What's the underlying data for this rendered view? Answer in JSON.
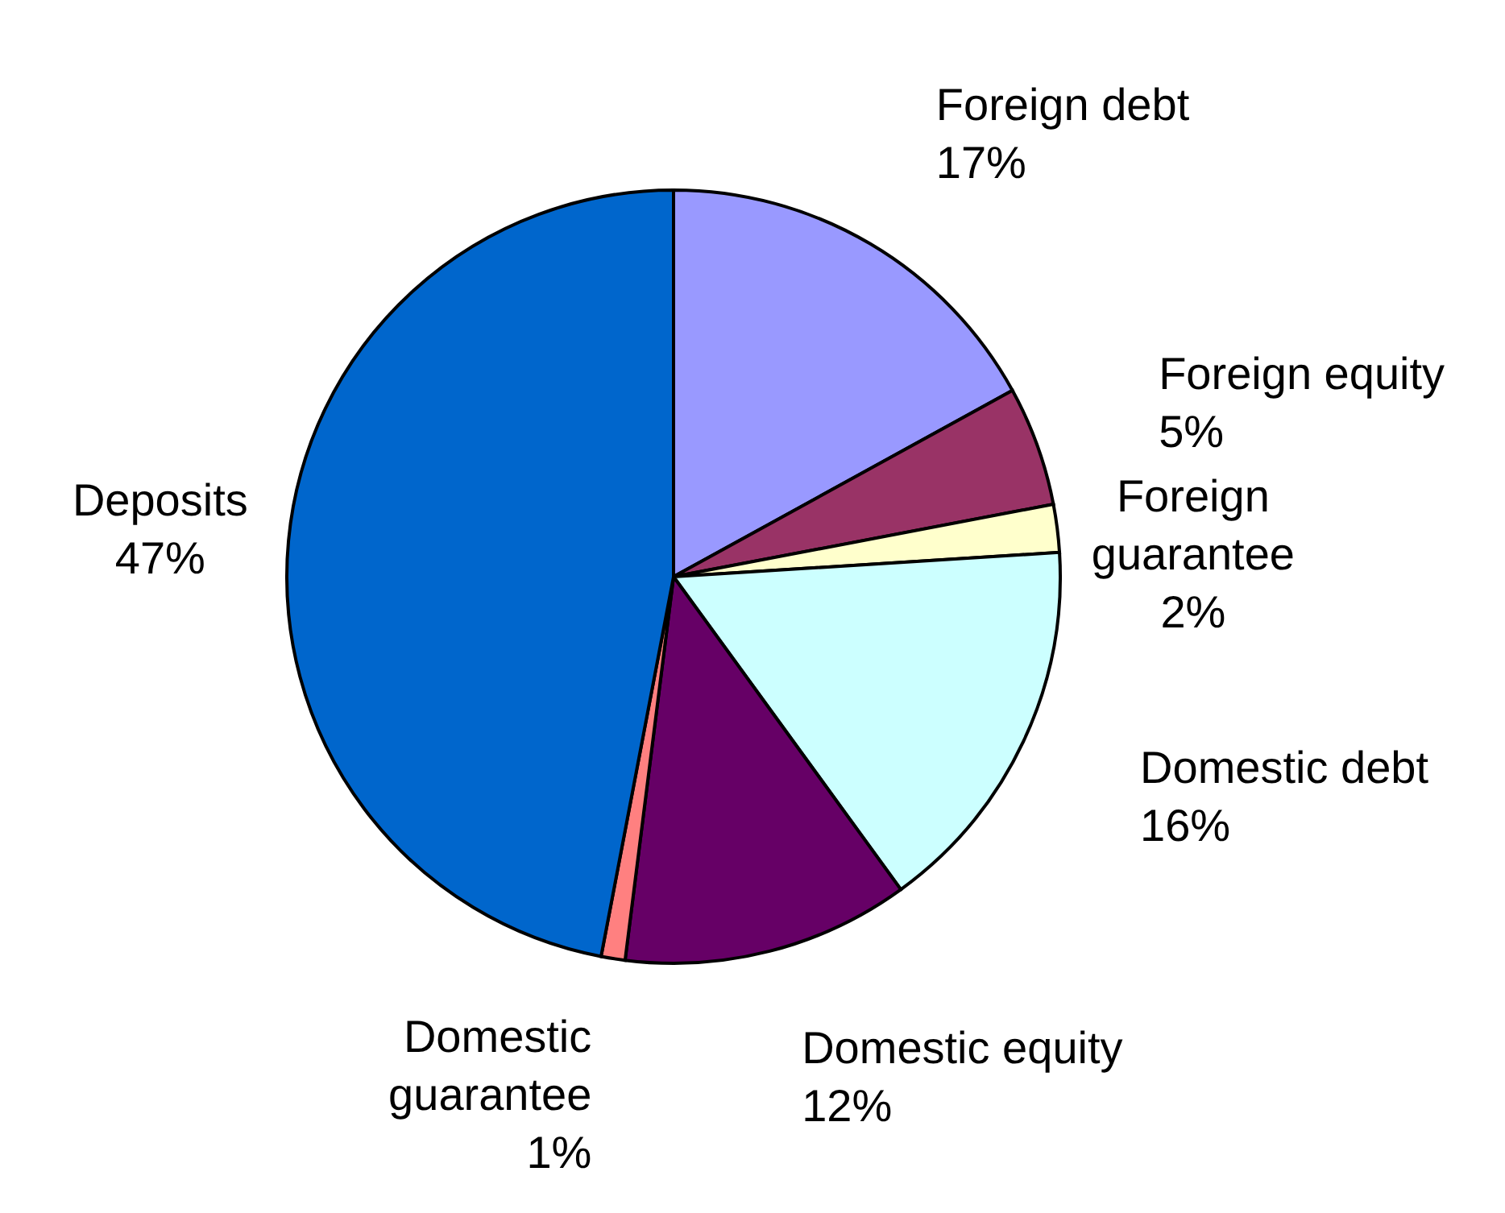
{
  "chart_data": {
    "type": "pie",
    "categories": [
      "Foreign debt",
      "Foreign equity",
      "Foreign guarantee",
      "Domestic debt",
      "Domestic equity",
      "Domestic guarantee",
      "Deposits"
    ],
    "values": [
      17,
      5,
      2,
      16,
      12,
      1,
      47
    ],
    "colors": [
      "#9999ff",
      "#993366",
      "#ffffcc",
      "#ccffff",
      "#660066",
      "#ff8080",
      "#0066cc"
    ],
    "value_labels": [
      "17%",
      "5%",
      "2%",
      "16%",
      "12%",
      "1%",
      "47%"
    ]
  }
}
